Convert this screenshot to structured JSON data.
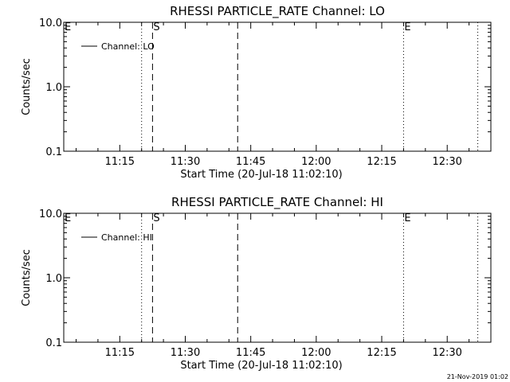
{
  "chart_data": [
    {
      "type": "line",
      "title": "RHESSI PARTICLE_RATE Channel: LO",
      "xlabel": "Start Time (20-Jul-18 11:02:10)",
      "ylabel": "Counts/sec",
      "yscale": "log",
      "ylim": [
        0.1,
        10.0
      ],
      "yticks": [
        "10.0",
        "1.0",
        "0.1"
      ],
      "xlim": [
        "11:02:10",
        "12:40:00"
      ],
      "xticks": [
        "11:15",
        "11:30",
        "11:45",
        "12:00",
        "12:15",
        "12:30"
      ],
      "legend": {
        "label": "Channel: LO",
        "placement": "top-left"
      },
      "series": [
        {
          "name": "Channel: LO",
          "values": []
        }
      ],
      "markers": [
        {
          "label": "E",
          "time": "11:02:10",
          "style": "none"
        },
        {
          "label": "",
          "time": "11:20:00",
          "style": "dotted"
        },
        {
          "label": "S",
          "time": "11:22:30",
          "style": "dashed"
        },
        {
          "label": "",
          "time": "11:42:00",
          "style": "dashed"
        },
        {
          "label": "E",
          "time": "12:20:00",
          "style": "dotted"
        },
        {
          "label": "",
          "time": "12:37:00",
          "style": "dotted"
        }
      ]
    },
    {
      "type": "line",
      "title": "RHESSI PARTICLE_RATE Channel: HI",
      "xlabel": "Start Time (20-Jul-18 11:02:10)",
      "ylabel": "Counts/sec",
      "yscale": "log",
      "ylim": [
        0.1,
        10.0
      ],
      "yticks": [
        "10.0",
        "1.0",
        "0.1"
      ],
      "xlim": [
        "11:02:10",
        "12:40:00"
      ],
      "xticks": [
        "11:15",
        "11:30",
        "11:45",
        "12:00",
        "12:15",
        "12:30"
      ],
      "legend": {
        "label": "Channel: HI",
        "placement": "top-left"
      },
      "series": [
        {
          "name": "Channel: HI",
          "values": []
        }
      ],
      "markers": [
        {
          "label": "E",
          "time": "11:02:10",
          "style": "none"
        },
        {
          "label": "",
          "time": "11:20:00",
          "style": "dotted"
        },
        {
          "label": "S",
          "time": "11:22:30",
          "style": "dashed"
        },
        {
          "label": "",
          "time": "11:42:00",
          "style": "dashed"
        },
        {
          "label": "E",
          "time": "12:20:00",
          "style": "dotted"
        },
        {
          "label": "",
          "time": "12:37:00",
          "style": "dotted"
        }
      ]
    }
  ],
  "footer": {
    "timestamp": "21-Nov-2019 01:02"
  }
}
